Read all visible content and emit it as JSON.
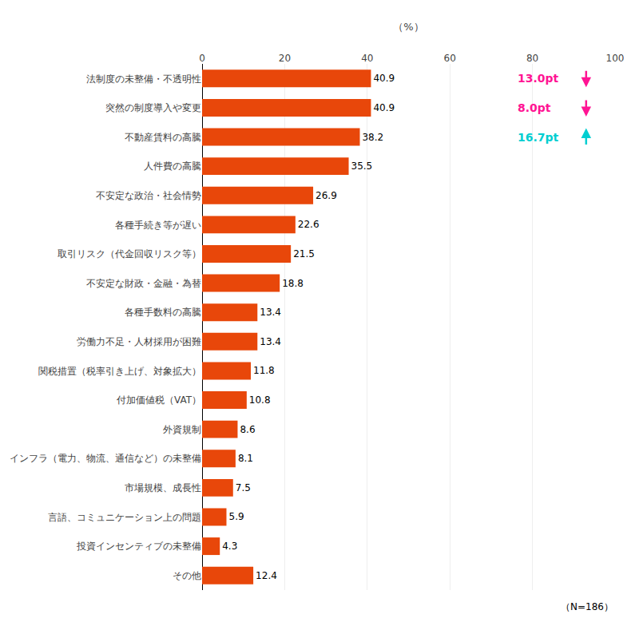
{
  "chart_data": {
    "type": "bar",
    "orientation": "horizontal",
    "categories": [
      "法制度の未整備・不透明性",
      "突然の制度導入や変更",
      "不動産賃料の高騰",
      "人件費の高騰",
      "不安定な政治・社会情勢",
      "各種手続き等が遅い",
      "取引リスク（代金回収リスク等）",
      "不安定な財政・金融・為替",
      "各種手数料の高騰",
      "労働力不足・人材採用が困難",
      "関税措置（税率引き上げ、対象拡大）",
      "付加価値税（VAT）",
      "外資規制",
      "インフラ（電力、物流、通信など）の未整備",
      "市場規模、成長性",
      "言語、コミュニケーション上の問題",
      "投資インセンティブの未整備",
      "その他"
    ],
    "values": [
      40.9,
      40.9,
      38.2,
      35.5,
      26.9,
      22.6,
      21.5,
      18.8,
      13.4,
      13.4,
      11.8,
      10.8,
      8.6,
      8.1,
      7.5,
      5.9,
      4.3,
      12.4
    ],
    "color": "#E8470A",
    "xlabel": "（%）",
    "xlim": [
      0,
      100
    ],
    "xticks": [
      0,
      20,
      40,
      60,
      80,
      100
    ],
    "grid": true,
    "data_labels": true,
    "annotations": [
      {
        "text": "13.0pt",
        "category": "法制度の未整備・不透明性",
        "arrow": "down",
        "color": "#FF1493"
      },
      {
        "text": "8.0pt",
        "category": "突然の制度導入や変更",
        "arrow": "down",
        "color": "#FF1493"
      },
      {
        "text": "16.7pt",
        "category": "不動産賃料の高騰",
        "arrow": "up",
        "color": "#00CED1"
      },
      {
        "text": "（N=186）"
      }
    ]
  }
}
